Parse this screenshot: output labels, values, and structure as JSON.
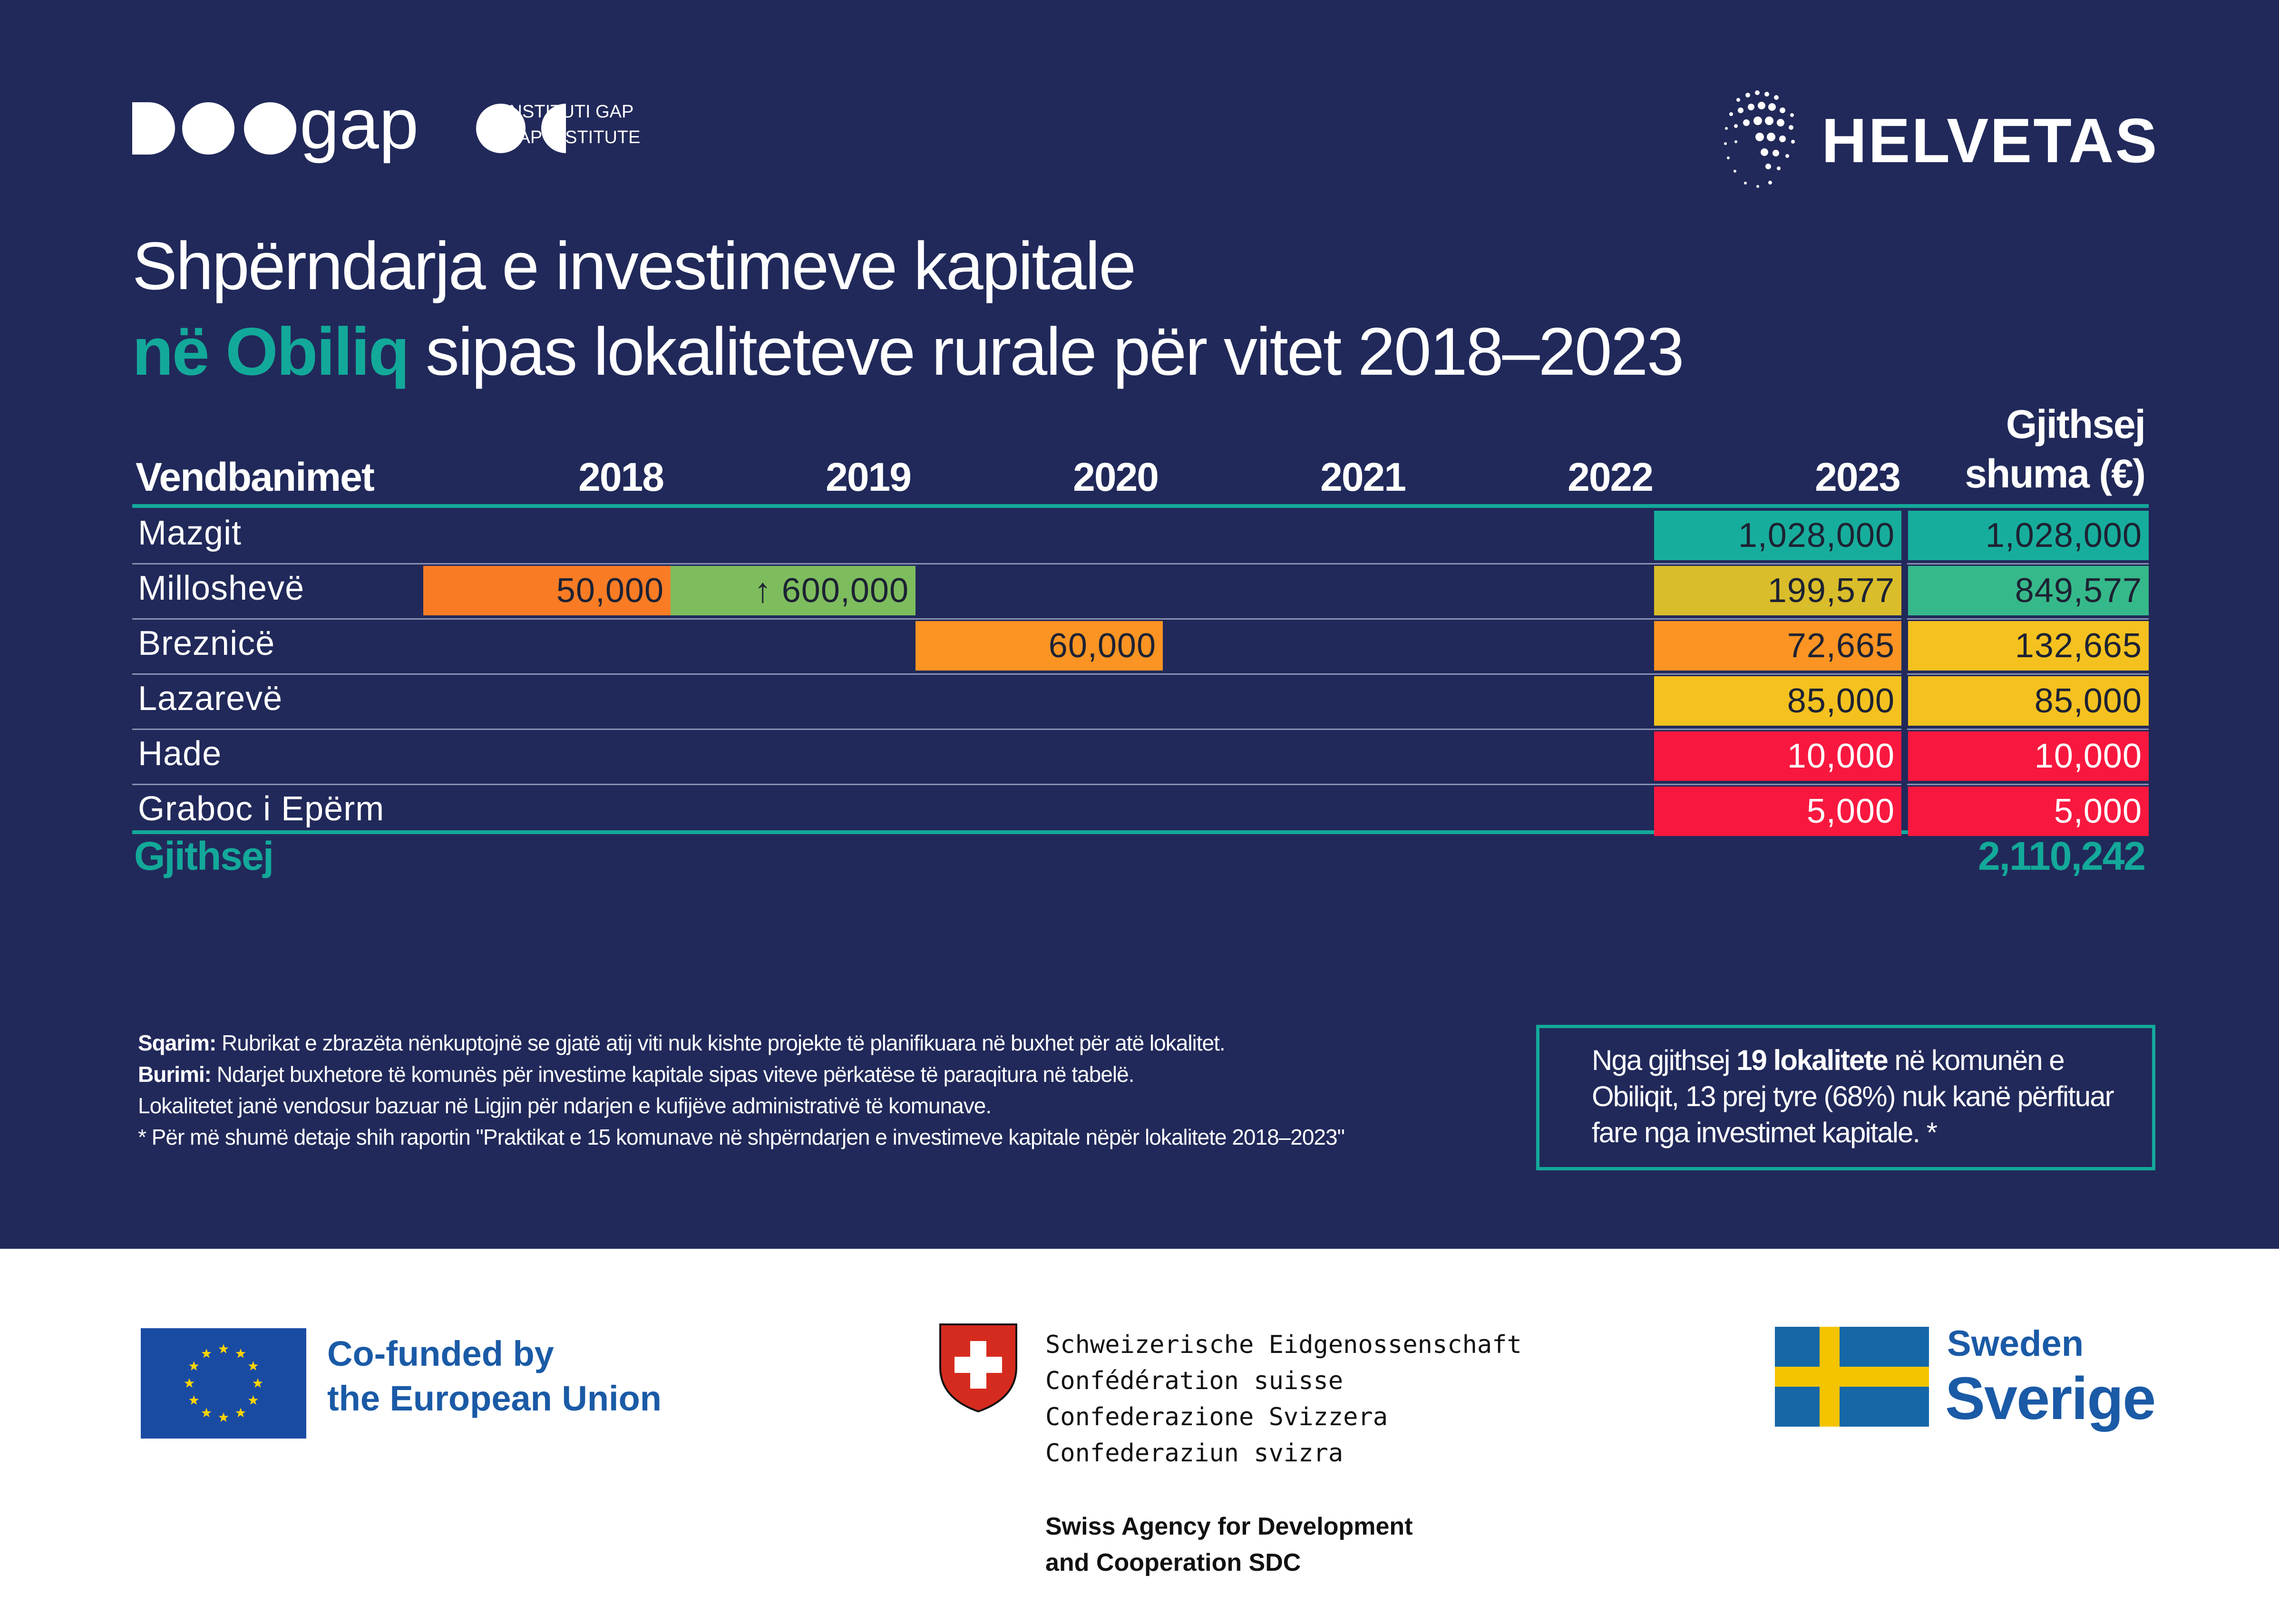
{
  "header": {
    "gap_institute_line1": "INSTITUTI GAP",
    "gap_institute_line2": "GAP INSTITUTE",
    "gap_word": "gap",
    "helvetas": "HELVETAS"
  },
  "title": {
    "line1": "Shpërndarja e investimeve kapitale",
    "line2_highlight": "në Obiliq",
    "line2_rest": " sipas lokaliteteve rurale për vitet 2018–2023"
  },
  "chart_data": {
    "type": "table",
    "row_header": "Vendbanimet",
    "columns": [
      "2018",
      "2019",
      "2020",
      "2021",
      "2022",
      "2023"
    ],
    "total_header_line1": "Gjithsej",
    "total_header_line2": "shuma (€)",
    "rows": [
      {
        "name": "Mazgit",
        "values": [
          null,
          null,
          null,
          null,
          null,
          1028000
        ],
        "labels": [
          "",
          "",
          "",
          "",
          "",
          "1,028,000"
        ],
        "total": 1028000,
        "total_label": "1,028,000"
      },
      {
        "name": "Milloshevë",
        "values": [
          50000,
          600000,
          null,
          null,
          null,
          199577
        ],
        "labels": [
          "50,000",
          "600,000",
          "",
          "",
          "",
          "199,577"
        ],
        "total": 849577,
        "total_label": "849,577"
      },
      {
        "name": "Breznicë",
        "values": [
          null,
          null,
          60000,
          null,
          null,
          72665
        ],
        "labels": [
          "",
          "",
          "60,000",
          "",
          "",
          "72,665"
        ],
        "total": 132665,
        "total_label": "132,665"
      },
      {
        "name": "Lazarevë",
        "values": [
          null,
          null,
          null,
          null,
          null,
          85000
        ],
        "labels": [
          "",
          "",
          "",
          "",
          "",
          "85,000"
        ],
        "total": 85000,
        "total_label": "85,000"
      },
      {
        "name": "Hade",
        "values": [
          null,
          null,
          null,
          null,
          null,
          10000
        ],
        "labels": [
          "",
          "",
          "",
          "",
          "",
          "10,000"
        ],
        "total": 10000,
        "total_label": "10,000"
      },
      {
        "name": "Graboc i Epërm",
        "values": [
          null,
          null,
          null,
          null,
          null,
          5000
        ],
        "labels": [
          "",
          "",
          "",
          "",
          "",
          "5,000"
        ],
        "total": 5000,
        "total_label": "5,000"
      }
    ],
    "grand_total_label": "Gjithsej",
    "grand_total": 2110242,
    "grand_total_text": "2,110,242",
    "up_arrow": "↑",
    "colors": {
      "teal": "#17ad9c",
      "green_teal": "#36b98a",
      "green": "#7ebd5e",
      "yellow_olive": "#d9bd2a",
      "yellow": "#f4c11f",
      "orange": "#fb9423",
      "orange_dark": "#f97c25",
      "red": "#f8183f"
    }
  },
  "notes": {
    "clarification_label": "Sqarim:",
    "clarification_text": " Rubrikat e zbrazëta nënkuptojnë se gjatë atij viti nuk kishte projekte të planifikuara në buxhet për atë lokalitet.",
    "source_label": "Burimi:",
    "source_text": " Ndarjet buxhetore të komunës për investime kapitale sipas viteve përkatëse të paraqitura në tabelë.",
    "line3": "Lokalitetet janë vendosur bazuar në Ligjin për ndarjen e kufijëve administrativë të komunave.",
    "line4": "* Për më shumë detaje shih raportin \"Praktikat e 15 komunave në shpërndarjen e investimeve kapitale nëpër lokalitete 2018–2023\""
  },
  "callout": {
    "part1": "Nga gjithsej ",
    "bold": "19 lokalitete",
    "part2": " në komunën e Obiliqit, 13 prej tyre (68%) nuk kanë përfituar fare nga investimet kapitale. *"
  },
  "footer": {
    "eu_line1": "Co-funded by",
    "eu_line2": "the European Union",
    "ch_line1": "Schweizerische Eidgenossenschaft",
    "ch_line2": "Confédération suisse",
    "ch_line3": "Confederazione Svizzera",
    "ch_line4": "Confederaziun svizra",
    "sdc_line1": "Swiss Agency for Development",
    "sdc_line2": "and Cooperation SDC",
    "sweden": "Sweden",
    "sverige": "Sverige"
  }
}
